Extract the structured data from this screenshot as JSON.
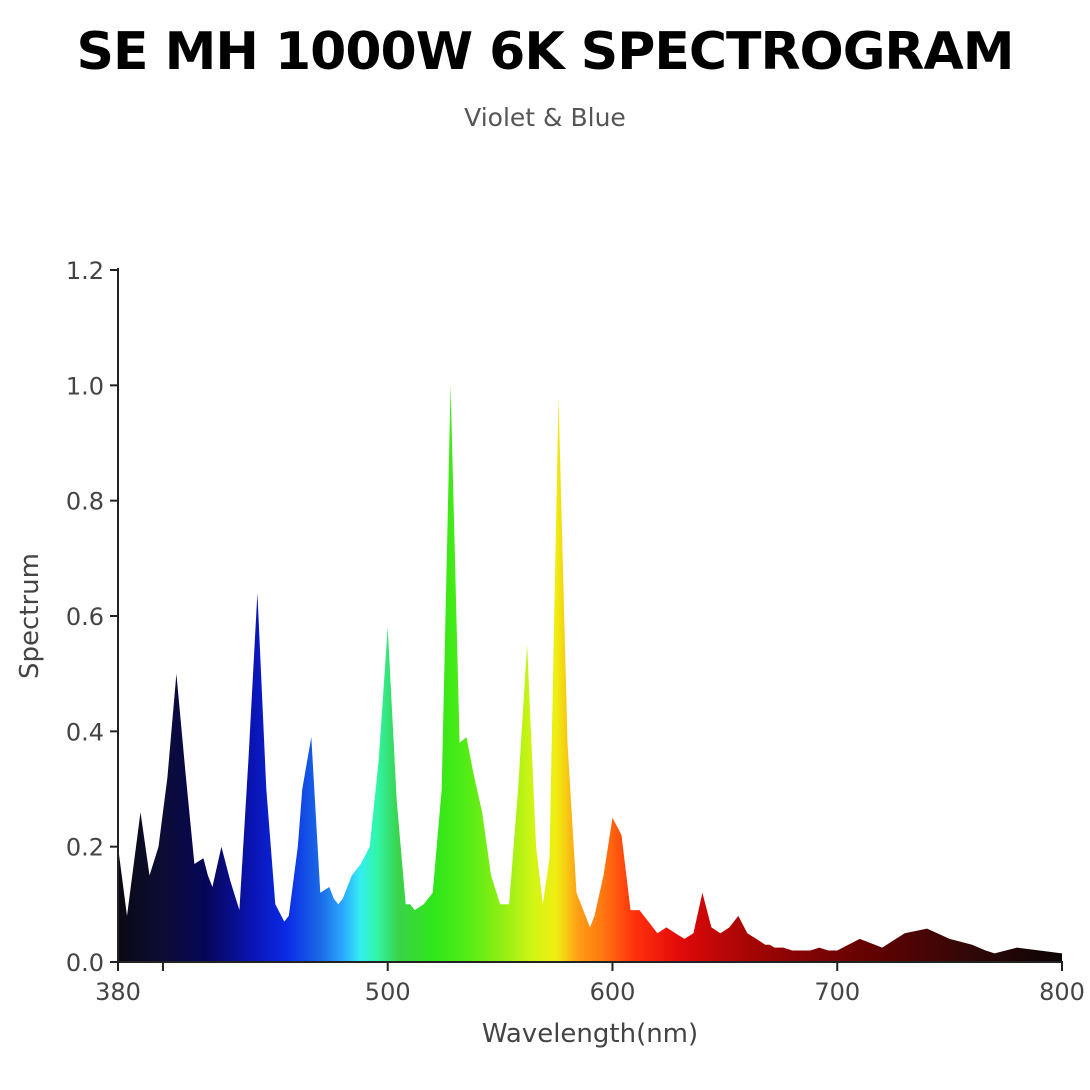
{
  "title": "SE MH 1000W 6K SPECTROGRAM",
  "subtitle": "Violet & Blue",
  "chart_data": {
    "type": "area",
    "xlabel": "Wavelength(nm)",
    "ylabel": "Spectrum",
    "xlim": [
      380,
      800
    ],
    "ylim": [
      0,
      1.2
    ],
    "x_ticks": [
      380,
      400,
      500,
      600,
      700,
      800
    ],
    "x_tick_labels": [
      "380",
      "",
      "500",
      "600",
      "700",
      "800"
    ],
    "y_ticks": [
      0,
      0.2,
      0.4,
      0.6,
      0.8,
      1.0,
      1.2
    ],
    "y_tick_labels": [
      "0.0",
      "0.2",
      "0.4",
      "0.6",
      "0.8",
      "1.0",
      "1.2"
    ],
    "grid": false,
    "fill": "visible-spectrum gradient",
    "x": [
      380,
      384,
      390,
      394,
      398,
      402,
      406,
      410,
      414,
      418,
      420,
      422,
      426,
      430,
      434,
      438,
      442,
      446,
      450,
      454,
      456,
      458,
      460,
      462,
      466,
      470,
      474,
      476,
      478,
      480,
      484,
      488,
      492,
      496,
      500,
      504,
      508,
      510,
      512,
      516,
      520,
      524,
      528,
      532,
      535,
      538,
      542,
      546,
      550,
      554,
      558,
      562,
      566,
      569,
      572,
      576,
      580,
      584,
      588,
      590,
      592,
      596,
      600,
      604,
      608,
      612,
      616,
      620,
      624,
      628,
      632,
      636,
      640,
      644,
      648,
      652,
      656,
      660,
      664,
      668,
      670,
      672,
      676,
      680,
      684,
      688,
      692,
      696,
      700,
      710,
      720,
      730,
      740,
      750,
      760,
      766,
      770,
      775,
      780,
      790,
      800
    ],
    "y": [
      0.2,
      0.08,
      0.26,
      0.15,
      0.2,
      0.32,
      0.5,
      0.33,
      0.17,
      0.18,
      0.15,
      0.13,
      0.2,
      0.14,
      0.09,
      0.35,
      0.64,
      0.3,
      0.1,
      0.07,
      0.08,
      0.14,
      0.2,
      0.3,
      0.39,
      0.12,
      0.13,
      0.11,
      0.1,
      0.11,
      0.15,
      0.17,
      0.2,
      0.35,
      0.58,
      0.28,
      0.1,
      0.1,
      0.09,
      0.1,
      0.12,
      0.3,
      1.0,
      0.38,
      0.39,
      0.33,
      0.26,
      0.15,
      0.1,
      0.1,
      0.3,
      0.55,
      0.2,
      0.1,
      0.18,
      0.98,
      0.38,
      0.12,
      0.08,
      0.06,
      0.08,
      0.15,
      0.25,
      0.22,
      0.09,
      0.09,
      0.07,
      0.05,
      0.06,
      0.05,
      0.04,
      0.05,
      0.12,
      0.06,
      0.05,
      0.06,
      0.08,
      0.05,
      0.04,
      0.03,
      0.03,
      0.025,
      0.025,
      0.02,
      0.02,
      0.02,
      0.025,
      0.02,
      0.02,
      0.04,
      0.025,
      0.05,
      0.058,
      0.04,
      0.03,
      0.02,
      0.015,
      0.02,
      0.025,
      0.02,
      0.015
    ]
  }
}
